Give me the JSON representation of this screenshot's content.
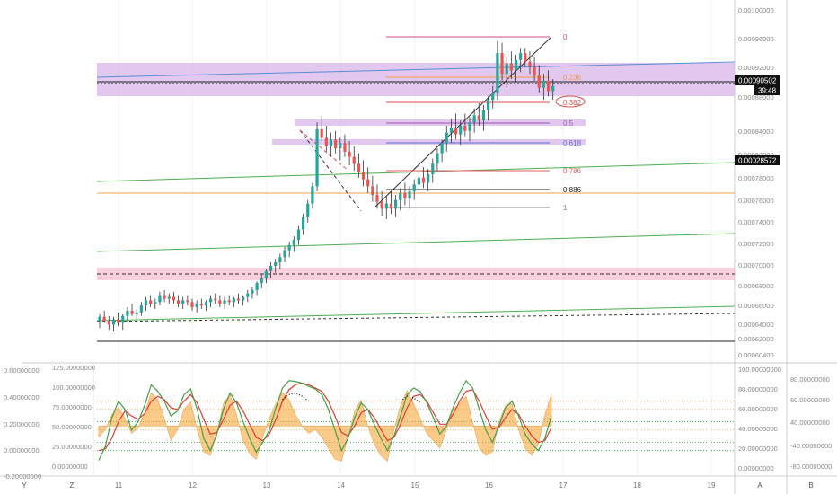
{
  "chart_data": {
    "type": "candlestick",
    "main": {
      "price_axis_labels": [
        "0.00100000",
        "0.00096000",
        "0.00092000",
        "0.00088000",
        "0.00084000",
        "0.00080000",
        "0.00078000",
        "0.00076000",
        "0.00074000",
        "0.00072000",
        "0.00070000",
        "0.00068000",
        "0.00066000",
        "0.00064000",
        "0.00062000",
        "0.00060400"
      ],
      "current_price": "0.00090502",
      "countdown": "39:48",
      "marker_price": "0.00028572",
      "fib_levels": [
        {
          "label": "0",
          "color": "#d04c8a"
        },
        {
          "label": "0.236",
          "color": "#f0a050"
        },
        {
          "label": "0.382",
          "color": "#d9534f"
        },
        {
          "label": "0.5",
          "color": "#9b59b6"
        },
        {
          "label": "0.618",
          "color": "#5b6fd6"
        },
        {
          "label": "0.786",
          "color": "#e06060"
        },
        {
          "label": "0.886",
          "color": "#222222"
        },
        {
          "label": "1",
          "color": "#888888"
        }
      ],
      "candles": [
        [
          0.00064,
          0.000648,
          0.000632,
          0.000645
        ],
        [
          0.000645,
          0.000652,
          0.000638,
          0.00064
        ],
        [
          0.00064,
          0.000646,
          0.00063,
          0.000636
        ],
        [
          0.000636,
          0.000645,
          0.000628,
          0.000642
        ],
        [
          0.000642,
          0.00065,
          0.000634,
          0.000638
        ],
        [
          0.000638,
          0.000648,
          0.00063,
          0.000646
        ],
        [
          0.000646,
          0.000656,
          0.00064,
          0.000652
        ],
        [
          0.000652,
          0.00066,
          0.000646,
          0.000648
        ],
        [
          0.000648,
          0.000654,
          0.000642,
          0.00065
        ],
        [
          0.00065,
          0.000662,
          0.000646,
          0.000658
        ],
        [
          0.000658,
          0.000668,
          0.000652,
          0.000664
        ],
        [
          0.000664,
          0.00067,
          0.000656,
          0.00066
        ],
        [
          0.00066,
          0.000666,
          0.000654,
          0.000662
        ],
        [
          0.000662,
          0.000674,
          0.000658,
          0.00067
        ],
        [
          0.00067,
          0.000676,
          0.000662,
          0.000666
        ],
        [
          0.000666,
          0.000672,
          0.00066,
          0.000668
        ],
        [
          0.000668,
          0.000674,
          0.00066,
          0.000664
        ],
        [
          0.000664,
          0.00067,
          0.000656,
          0.00066
        ],
        [
          0.00066,
          0.000668,
          0.000654,
          0.000664
        ],
        [
          0.000664,
          0.00067,
          0.000658,
          0.000662
        ],
        [
          0.000662,
          0.000666,
          0.000652,
          0.000656
        ],
        [
          0.000656,
          0.000664,
          0.00065,
          0.00066
        ],
        [
          0.00066,
          0.000666,
          0.000654,
          0.000658
        ],
        [
          0.000658,
          0.000664,
          0.000652,
          0.000662
        ],
        [
          0.000662,
          0.00067,
          0.000656,
          0.000666
        ],
        [
          0.000666,
          0.000672,
          0.00066,
          0.000664
        ],
        [
          0.000664,
          0.00067,
          0.000656,
          0.00066
        ],
        [
          0.00066,
          0.000668,
          0.000654,
          0.000664
        ],
        [
          0.000664,
          0.00067,
          0.000658,
          0.000662
        ],
        [
          0.000662,
          0.000668,
          0.000656,
          0.000666
        ],
        [
          0.000666,
          0.000672,
          0.00066,
          0.000664
        ],
        [
          0.000664,
          0.00067,
          0.000658,
          0.000668
        ],
        [
          0.000668,
          0.000676,
          0.000662,
          0.000672
        ],
        [
          0.000672,
          0.00068,
          0.000666,
          0.000676
        ],
        [
          0.000676,
          0.000686,
          0.00067,
          0.000684
        ],
        [
          0.000684,
          0.000694,
          0.000678,
          0.00069
        ],
        [
          0.00069,
          0.0007,
          0.000684,
          0.000698
        ],
        [
          0.000698,
          0.000708,
          0.00069,
          0.000704
        ],
        [
          0.000704,
          0.000712,
          0.000696,
          0.000708
        ],
        [
          0.000708,
          0.000718,
          0.0007,
          0.000714
        ],
        [
          0.000714,
          0.000726,
          0.000708,
          0.000722
        ],
        [
          0.000722,
          0.000732,
          0.000714,
          0.000728
        ],
        [
          0.000728,
          0.000738,
          0.00072,
          0.000734
        ],
        [
          0.000734,
          0.00075,
          0.000728,
          0.000746
        ],
        [
          0.000746,
          0.000764,
          0.00074,
          0.00076
        ],
        [
          0.00076,
          0.00078,
          0.000754,
          0.000776
        ],
        [
          0.000776,
          0.0008,
          0.00077,
          0.000796
        ],
        [
          0.000796,
          0.00087,
          0.00079,
          0.000862
        ],
        [
          0.000862,
          0.000878,
          0.000848,
          0.000852
        ],
        [
          0.000852,
          0.000866,
          0.000836,
          0.000842
        ],
        [
          0.000842,
          0.000858,
          0.00083,
          0.00085
        ],
        [
          0.00085,
          0.00086,
          0.000834,
          0.00084
        ],
        [
          0.00084,
          0.000852,
          0.000826,
          0.000846
        ],
        [
          0.000846,
          0.000856,
          0.00083,
          0.000836
        ],
        [
          0.000836,
          0.000848,
          0.00082,
          0.00083
        ],
        [
          0.00083,
          0.000842,
          0.000814,
          0.000822
        ],
        [
          0.000822,
          0.000834,
          0.000806,
          0.000812
        ],
        [
          0.000812,
          0.000826,
          0.000796,
          0.000804
        ],
        [
          0.000804,
          0.000818,
          0.000788,
          0.000796
        ],
        [
          0.000796,
          0.000808,
          0.000778,
          0.000786
        ],
        [
          0.000786,
          0.000798,
          0.00077,
          0.000778
        ],
        [
          0.000778,
          0.00079,
          0.000762,
          0.00077
        ],
        [
          0.00077,
          0.000784,
          0.000758,
          0.000776
        ],
        [
          0.000776,
          0.00079,
          0.000764,
          0.00077
        ],
        [
          0.00077,
          0.000786,
          0.00076,
          0.00078
        ],
        [
          0.00078,
          0.000794,
          0.000768,
          0.000788
        ],
        [
          0.000788,
          0.0008,
          0.000774,
          0.000782
        ],
        [
          0.000782,
          0.000796,
          0.00077,
          0.00079
        ],
        [
          0.00079,
          0.000804,
          0.00078,
          0.000798
        ],
        [
          0.000798,
          0.000812,
          0.000788,
          0.000806
        ],
        [
          0.000806,
          0.000818,
          0.000794,
          0.0008
        ],
        [
          0.0008,
          0.000816,
          0.00079,
          0.00081
        ],
        [
          0.00081,
          0.000828,
          0.0008,
          0.000822
        ],
        [
          0.000822,
          0.00084,
          0.000814,
          0.000834
        ],
        [
          0.000834,
          0.00085,
          0.000824,
          0.000846
        ],
        [
          0.000846,
          0.000866,
          0.000836,
          0.000858
        ],
        [
          0.000858,
          0.000874,
          0.000846,
          0.000864
        ],
        [
          0.000864,
          0.00088,
          0.00085,
          0.000856
        ],
        [
          0.000856,
          0.000872,
          0.000844,
          0.000866
        ],
        [
          0.000866,
          0.00088,
          0.000854,
          0.00086
        ],
        [
          0.00086,
          0.000876,
          0.000848,
          0.00087
        ],
        [
          0.00087,
          0.000886,
          0.000858,
          0.000878
        ],
        [
          0.000878,
          0.000892,
          0.000866,
          0.000872
        ],
        [
          0.000872,
          0.00089,
          0.00086,
          0.000884
        ],
        [
          0.000884,
          0.0009,
          0.000872,
          0.000896
        ],
        [
          0.000896,
          0.000912,
          0.000886,
          0.000904
        ],
        [
          0.000904,
          0.000964,
          0.000896,
          0.00095
        ],
        [
          0.00095,
          0.000962,
          0.000918,
          0.000926
        ],
        [
          0.000926,
          0.000946,
          0.00091,
          0.000938
        ],
        [
          0.000938,
          0.000952,
          0.00092,
          0.00093
        ],
        [
          0.00093,
          0.000948,
          0.000916,
          0.000942
        ],
        [
          0.000942,
          0.000956,
          0.000928,
          0.00095
        ],
        [
          0.00095,
          0.000956,
          0.000934,
          0.00094
        ],
        [
          0.00094,
          0.000952,
          0.000926,
          0.000934
        ],
        [
          0.000934,
          0.000946,
          0.000918,
          0.000924
        ],
        [
          0.000924,
          0.000936,
          0.000904,
          0.00091
        ],
        [
          0.00091,
          0.000926,
          0.000896,
          0.000918
        ],
        [
          0.000918,
          0.00093,
          0.0009,
          0.000906
        ],
        [
          0.000906,
          0.00092,
          0.000896,
          0.000912
        ]
      ]
    },
    "oscillator": {
      "left_axis_labels": [
        "125.00000000",
        "100.00000000",
        "75.00000000",
        "50.00000000",
        "25.00000000",
        "0.00000000"
      ],
      "outer_left_axis_labels": [
        "0.60000000",
        "0.40000000",
        "0.20000000",
        "0.00000000",
        "-0.20000000"
      ],
      "right_axis_labels": [
        "100.00000000",
        "80.00000000",
        "60.00000000",
        "40.00000000",
        "20.00000000",
        "0.00000000"
      ],
      "outer_right_axis_labels": [
        "80.00000000",
        "60.00000000",
        "40.00000000",
        "-40.00000000",
        "-80.00000000"
      ],
      "green_line": [
        8,
        25,
        60,
        80,
        70,
        45,
        55,
        75,
        100,
        92,
        80,
        62,
        68,
        88,
        95,
        70,
        35,
        20,
        40,
        70,
        90,
        78,
        55,
        35,
        18,
        30,
        45,
        72,
        96,
        105,
        104,
        102,
        98,
        95,
        88,
        70,
        45,
        20,
        35,
        60,
        78,
        70,
        52,
        35,
        20,
        38,
        62,
        88,
        96,
        92,
        78,
        60,
        40,
        50,
        72,
        90,
        105,
        96,
        70,
        45,
        30,
        50,
        72,
        80,
        62,
        40,
        28,
        20,
        35,
        62
      ],
      "red_line": [
        20,
        22,
        35,
        55,
        68,
        62,
        58,
        65,
        80,
        86,
        82,
        72,
        70,
        80,
        88,
        78,
        58,
        40,
        42,
        58,
        75,
        80,
        68,
        52,
        36,
        32,
        40,
        58,
        80,
        94,
        100,
        102,
        100,
        96,
        92,
        80,
        62,
        42,
        38,
        50,
        66,
        70,
        60,
        46,
        32,
        36,
        52,
        72,
        86,
        88,
        80,
        66,
        52,
        52,
        64,
        80,
        92,
        94,
        80,
        62,
        46,
        48,
        60,
        70,
        64,
        50,
        38,
        30,
        32,
        48
      ],
      "histogram": [
        -30,
        -10,
        30,
        50,
        20,
        -20,
        -5,
        35,
        90,
        70,
        20,
        -40,
        -10,
        45,
        65,
        -10,
        -70,
        -80,
        -20,
        60,
        85,
        30,
        -40,
        -75,
        -90,
        -30,
        20,
        60,
        90,
        70,
        30,
        0,
        -20,
        -10,
        -30,
        -60,
        -90,
        -95,
        -30,
        40,
        70,
        0,
        -50,
        -80,
        -95,
        -10,
        55,
        95,
        60,
        20,
        -20,
        -40,
        -60,
        -10,
        45,
        60,
        80,
        10,
        -60,
        -80,
        -70,
        10,
        55,
        60,
        -10,
        -60,
        -80,
        -50,
        30,
        85
      ],
      "dotted_signal": [
        null,
        null,
        null,
        null,
        null,
        null,
        null,
        null,
        null,
        null,
        null,
        null,
        null,
        null,
        null,
        null,
        null,
        null,
        null,
        null,
        null,
        null,
        null,
        null,
        null,
        null,
        null,
        null,
        82,
        88,
        90,
        86,
        80,
        null,
        null,
        null,
        null,
        null,
        null,
        null,
        null,
        null,
        null,
        null,
        null,
        null,
        80,
        86,
        84,
        78,
        null,
        null,
        null,
        null,
        null,
        null,
        null,
        null,
        null,
        null,
        null,
        null,
        null,
        null,
        null,
        null,
        null,
        null,
        null,
        null
      ],
      "levels": [
        {
          "value": 80,
          "color": "#f0a050"
        },
        {
          "value": 70,
          "color": "#f0a050"
        },
        {
          "value": 55,
          "color": "#22aa44"
        },
        {
          "value": 45,
          "color": "#f0a050"
        },
        {
          "value": 30,
          "color": "#22aa44"
        },
        {
          "value": 20,
          "color": "#22aa44"
        }
      ]
    },
    "x_axis": {
      "labels": [
        "11",
        "12",
        "13",
        "14",
        "15",
        "16",
        "17",
        "18",
        "19"
      ],
      "corner_buttons": [
        "Y",
        "Z",
        "A",
        "B"
      ]
    },
    "colors": {
      "up": "#26a69a",
      "down": "#ef5350",
      "wick": "#333333",
      "purple_zone": "#d8b4e8",
      "pink_zone": "#f6c3d3",
      "trend_blue": "#5b8dd6",
      "trend_green": "#4caf50",
      "orange": "#f0a050"
    }
  }
}
